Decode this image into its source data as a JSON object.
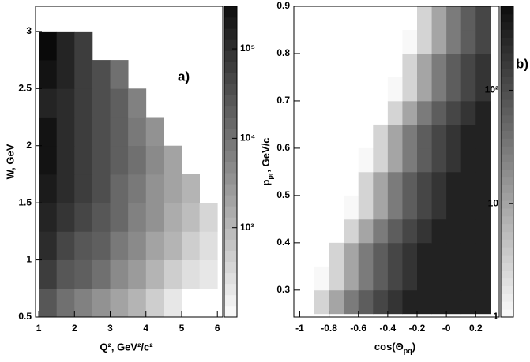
{
  "chart_data": [
    {
      "type": "heatmap",
      "panel_label": "a)",
      "xlabel": "Q², GeV²/c²",
      "ylabel": "W, GeV",
      "xlim": [
        0.91,
        6.15
      ],
      "ylim": [
        0.5,
        3.22
      ],
      "xticks": [
        1,
        2,
        3,
        4,
        5,
        6
      ],
      "yticks": [
        0.5,
        1,
        1.5,
        2,
        2.5,
        3
      ],
      "log_z": true,
      "zlim": [
        100,
        300000
      ],
      "zticks": [
        {
          "value": 1000,
          "label": "10³"
        },
        {
          "value": 10000,
          "label": "10⁴"
        },
        {
          "value": 100000,
          "label": "10⁵"
        }
      ],
      "xbins": [
        1.0,
        1.5,
        2.0,
        2.5,
        3.0,
        3.5,
        4.0,
        4.5,
        5.0,
        5.5,
        6.0
      ],
      "ybins": [
        0.5,
        0.75,
        1.0,
        1.25,
        1.5,
        1.75,
        2.0,
        2.25,
        2.5,
        2.75,
        3.0
      ],
      "z": [
        [
          25000,
          12000,
          7000,
          4000,
          2000,
          1000,
          500,
          200,
          null,
          null
        ],
        [
          60000,
          30000,
          18000,
          10000,
          5000,
          2500,
          1200,
          500,
          250,
          200
        ],
        [
          100000,
          50000,
          30000,
          18000,
          9000,
          4500,
          2200,
          1000,
          500,
          300
        ],
        [
          150000,
          80000,
          45000,
          25000,
          13000,
          6500,
          3200,
          1500,
          800,
          400
        ],
        [
          200000,
          100000,
          55000,
          32000,
          16000,
          8000,
          4000,
          2000,
          1000,
          null
        ],
        [
          250000,
          120000,
          70000,
          40000,
          20000,
          10000,
          4500,
          2000,
          null,
          null
        ],
        [
          250000,
          120000,
          70000,
          40000,
          20000,
          9000,
          3500,
          null,
          null,
          null
        ],
        [
          150000,
          120000,
          70000,
          40000,
          18000,
          6000,
          null,
          null,
          null,
          null
        ],
        [
          250000,
          150000,
          70000,
          35000,
          12000,
          null,
          null,
          null,
          null,
          null
        ],
        [
          300000,
          150000,
          60000,
          null,
          null,
          null,
          null,
          null,
          null,
          null
        ]
      ]
    },
    {
      "type": "heatmap",
      "panel_label": "b)",
      "xlabel": [
        "cos(Θ",
        "pq",
        ")"
      ],
      "ylabel": [
        "p",
        "pr",
        ", GeV/c"
      ],
      "xlim": [
        -1.04,
        0.36
      ],
      "ylim": [
        0.243,
        0.9
      ],
      "xticks": [
        -1,
        -0.8,
        -0.6,
        -0.4,
        -0.2,
        {
          "value": 0,
          "label": "-0"
        },
        0.2
      ],
      "yticks": [
        0.3,
        0.4,
        0.5,
        0.6,
        0.7,
        0.8,
        0.9
      ],
      "log_z": true,
      "zlim": [
        1,
        550
      ],
      "zticks": [
        1,
        10,
        {
          "value": 100,
          "label": "10²"
        }
      ],
      "xbins": [
        -1.0,
        -0.9,
        -0.8,
        -0.7,
        -0.6,
        -0.5,
        -0.4,
        -0.3,
        -0.2,
        -0.1,
        0.0,
        0.1,
        0.2,
        0.3
      ],
      "ybins": [
        0.25,
        0.3,
        0.35,
        0.4,
        0.45,
        0.5,
        0.55,
        0.6,
        0.65,
        0.7,
        0.75,
        0.8,
        0.85,
        0.9
      ],
      "z": [
        [
          null,
          3,
          10,
          30,
          70,
          130,
          200,
          300,
          300,
          300,
          300,
          300,
          300
        ],
        [
          null,
          1,
          3,
          10,
          30,
          70,
          130,
          200,
          300,
          300,
          300,
          300,
          300
        ],
        [
          null,
          null,
          3,
          10,
          30,
          70,
          130,
          200,
          300,
          300,
          300,
          300,
          300
        ],
        [
          null,
          null,
          null,
          3,
          10,
          30,
          70,
          130,
          200,
          300,
          300,
          300,
          300
        ],
        [
          null,
          null,
          null,
          1,
          3,
          10,
          30,
          70,
          130,
          200,
          300,
          300,
          300
        ],
        [
          null,
          null,
          null,
          null,
          3,
          10,
          30,
          70,
          130,
          200,
          300,
          300,
          300
        ],
        [
          null,
          null,
          null,
          null,
          1,
          3,
          10,
          30,
          70,
          130,
          200,
          300,
          300
        ],
        [
          null,
          null,
          null,
          null,
          null,
          3,
          10,
          30,
          70,
          130,
          200,
          300,
          300
        ],
        [
          null,
          null,
          null,
          null,
          null,
          null,
          3,
          10,
          30,
          70,
          130,
          200,
          300
        ],
        [
          null,
          null,
          null,
          null,
          null,
          null,
          1,
          3,
          10,
          30,
          70,
          130,
          200
        ],
        [
          null,
          null,
          null,
          null,
          null,
          null,
          null,
          3,
          10,
          30,
          70,
          130,
          200
        ],
        [
          null,
          null,
          null,
          null,
          null,
          null,
          null,
          1,
          3,
          10,
          30,
          70,
          130
        ],
        [
          null,
          null,
          null,
          null,
          null,
          null,
          null,
          null,
          3,
          10,
          30,
          70,
          130
        ]
      ]
    }
  ]
}
